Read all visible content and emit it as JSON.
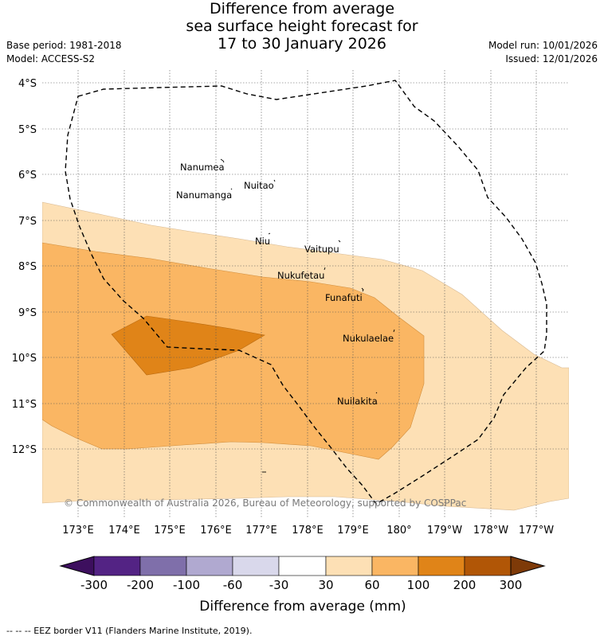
{
  "header": {
    "title_line1": "Difference from average",
    "title_line2": "sea surface height forecast for",
    "title_line3": "17 to 30 January 2026",
    "base_period": "Base period: 1981-2018",
    "model": "Model: ACCESS-S2",
    "model_run": "Model run: 10/01/2026",
    "issued": "Issued: 12/01/2026"
  },
  "map": {
    "latitude_labels": [
      "4°S",
      "5°S",
      "6°S",
      "7°S",
      "8°S",
      "9°S",
      "10°S",
      "11°S",
      "12°S"
    ],
    "longitude_labels": [
      "173°E",
      "174°E",
      "175°E",
      "176°E",
      "177°E",
      "178°E",
      "179°E",
      "180°",
      "179°W",
      "178°W",
      "177°W"
    ],
    "islands": {
      "nanumea": "Nanumea",
      "nuitao": "Nuitao",
      "nanumanga": "Nanumanga",
      "niu": "Niu",
      "vaitupu": "Vaitupu",
      "nukufetau": "Nukufetau",
      "funafuti": "Funafuti",
      "nukulaelae": "Nukulaelae",
      "nuilakita": "Nuilakita"
    },
    "copyright": "© Commonwealth of Australia 2026, Bureau of Meteorology, supported by COSPPac",
    "contour_colors": {
      "30_to_60": "#fde0b5",
      "60_to_100": "#fab663",
      "100_to_200": "#e08418"
    }
  },
  "colorbar": {
    "ticks": [
      "-300",
      "-200",
      "-100",
      "-60",
      "-30",
      "30",
      "60",
      "100",
      "200",
      "300"
    ],
    "title": "Difference from average (mm)",
    "colors": [
      "#3d0f5e",
      "#532384",
      "#7f6faa",
      "#b0a9d0",
      "#d9d8eb",
      "#ffffff",
      "#fde0b5",
      "#fab663",
      "#e08418",
      "#b15606",
      "#7e3a08"
    ]
  },
  "footnote": "--  --  -- EEZ border V11 (Flanders Marine Institute, 2019)."
}
